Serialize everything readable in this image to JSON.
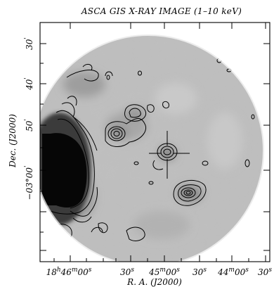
{
  "figure": {
    "title": "ASCA GIS X-RAY IMAGE (1–10 keV)",
    "xlabel": "R. A. (J2000)",
    "ylabel": "Dec. (J2000)",
    "colors": {
      "frame": "#000000",
      "background_gray": "#bdbdbd",
      "bright_source": "#050505",
      "outside_fov": "#ffffff"
    }
  },
  "axes": {
    "x_ticks": [
      {
        "main": "18",
        "h": "h",
        "m_val": "46",
        "m": "m",
        "s_val": "00",
        "s": "s"
      },
      {
        "main": "30",
        "s": "s"
      },
      {
        "main": "45",
        "m": "m",
        "s_val": "00",
        "s": "s"
      },
      {
        "main": "30",
        "s": "s"
      },
      {
        "main": "44",
        "m": "m",
        "s_val": "00",
        "s": "s"
      },
      {
        "main": "30",
        "s": "s"
      }
    ],
    "y_ticks": [
      {
        "text": "30",
        "prime": "'"
      },
      {
        "text": "40",
        "prime": "'"
      },
      {
        "text": "50",
        "prime": "'"
      },
      {
        "text": "−03°00",
        "prime": "'"
      }
    ]
  },
  "markers": {
    "cross_icon": "cross-marker"
  }
}
